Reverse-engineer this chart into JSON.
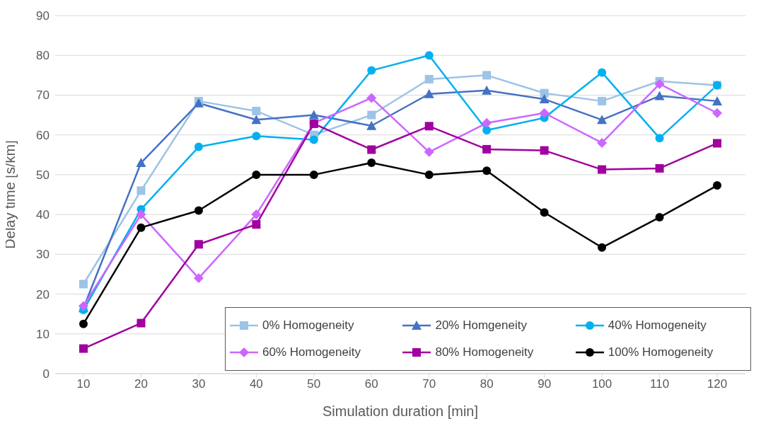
{
  "chart_data": {
    "type": "line",
    "xlabel": "Simulation duration [min]",
    "ylabel": "Delay time [s/km]",
    "categories": [
      "10",
      "20",
      "30",
      "40",
      "50",
      "60",
      "70",
      "80",
      "90",
      "100",
      "110",
      "120"
    ],
    "ylim": [
      0,
      90
    ],
    "yticks": [
      0,
      10,
      20,
      30,
      40,
      50,
      60,
      70,
      80,
      90
    ],
    "grid": "y",
    "legend": "bottom right",
    "line_style": "solid",
    "series": [
      {
        "name": "0% Homogeneity",
        "color": "#9dc3e6",
        "marker": "square",
        "values": [
          22.5,
          46,
          68.5,
          66,
          60,
          65,
          74,
          75,
          70.5,
          68.5,
          73.5,
          72.5
        ]
      },
      {
        "name": "20% Homgeneity",
        "color": "#4472c4",
        "marker": "triangle",
        "values": [
          16.5,
          53,
          68,
          63.8,
          65,
          62.3,
          70.3,
          71.2,
          69,
          63.8,
          69.8,
          68.5
        ]
      },
      {
        "name": "40% Homogeneity",
        "color": "#00b0f0",
        "marker": "circle",
        "values": [
          16,
          41.3,
          57,
          59.7,
          58.8,
          76.2,
          80,
          61.2,
          64.3,
          75.7,
          59.2,
          72.5
        ]
      },
      {
        "name": "60% Homogeneity",
        "color": "#cc66ff",
        "marker": "diamond",
        "values": [
          17,
          40,
          24,
          40,
          63,
          69.3,
          55.7,
          63,
          65.5,
          58,
          72.8,
          65.5
        ]
      },
      {
        "name": "80% Homogeneity",
        "color": "#a000a0",
        "marker": "square",
        "values": [
          6.3,
          12.7,
          32.5,
          37.5,
          62.8,
          56.3,
          62.2,
          56.4,
          56.1,
          51.3,
          51.6,
          57.9
        ]
      },
      {
        "name": "100% Homogeneity",
        "color": "#000000",
        "marker": "circle",
        "values": [
          12.5,
          36.7,
          41,
          50,
          50,
          53,
          50,
          51,
          40.5,
          31.7,
          39.3,
          47.3
        ]
      }
    ]
  }
}
